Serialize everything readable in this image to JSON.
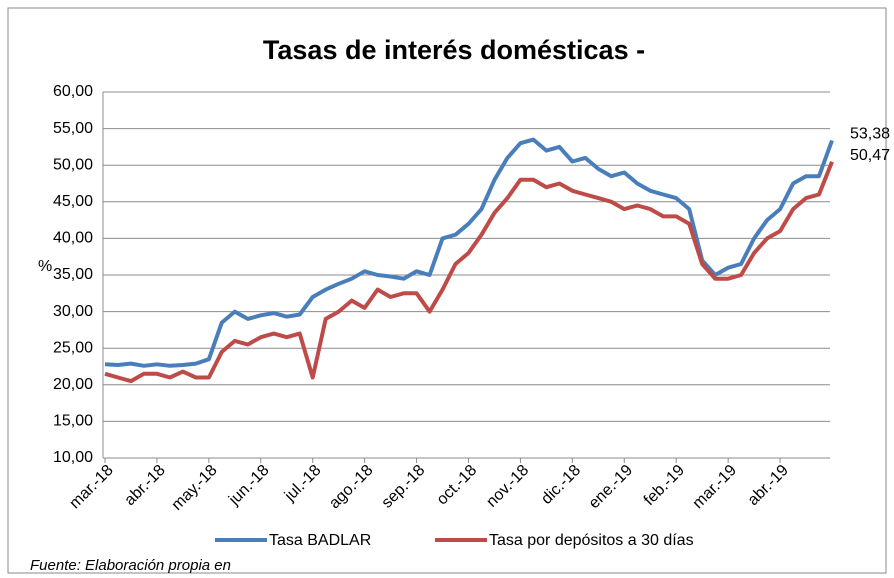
{
  "chart_data": {
    "type": "line",
    "title": "Tasas de interés domésticas -",
    "ylabel": "%",
    "source": "Fuente: Elaboración propia en",
    "categories": [
      "mar.-18",
      null,
      null,
      null,
      "abr.-18",
      null,
      null,
      null,
      "may.-18",
      null,
      null,
      null,
      "jun.-18",
      null,
      null,
      null,
      "jul.-18",
      null,
      null,
      null,
      "ago.-18",
      null,
      null,
      null,
      "sep.-18",
      null,
      null,
      null,
      "oct.-18",
      null,
      null,
      null,
      "nov.-18",
      null,
      null,
      null,
      "dic.-18",
      null,
      null,
      null,
      "ene.-19",
      null,
      null,
      null,
      "feb.-19",
      null,
      null,
      null,
      "mar.-19",
      null,
      null,
      null,
      "abr.-19",
      null,
      null,
      null,
      null
    ],
    "series": [
      {
        "name": "Tasa BADLAR",
        "color": "#4a7ebb",
        "values": [
          22.8,
          22.7,
          22.9,
          22.6,
          22.8,
          22.6,
          22.7,
          22.9,
          23.5,
          28.5,
          30,
          29,
          29.5,
          29.8,
          29.3,
          29.6,
          32,
          33,
          33.8,
          34.5,
          35.5,
          35,
          34.8,
          34.5,
          35.5,
          35,
          40,
          40.5,
          42,
          44,
          48,
          51,
          53,
          53.5,
          52,
          52.5,
          50.5,
          51,
          49.5,
          48.5,
          49,
          47.5,
          46.5,
          46,
          45.5,
          44,
          37,
          35,
          36,
          36.5,
          40,
          42.5,
          44,
          47.5,
          48.5,
          48.5,
          53.38
        ],
        "value_labels": [
          null,
          null,
          null,
          null,
          null,
          null,
          null,
          null,
          null,
          null,
          null,
          null,
          null,
          null,
          null,
          null,
          null,
          null,
          null,
          null,
          null,
          null,
          null,
          null,
          null,
          null,
          null,
          null,
          null,
          null,
          null,
          null,
          null,
          null,
          null,
          null,
          null,
          null,
          null,
          null,
          null,
          null,
          null,
          null,
          null,
          null,
          null,
          null,
          null,
          null,
          null,
          null,
          null,
          null,
          null,
          null,
          "53,38"
        ]
      },
      {
        "name": "Tasa por depósitos a 30 días",
        "color": "#be4b48",
        "values": [
          21.5,
          21,
          20.5,
          21.5,
          21.5,
          21,
          21.8,
          21,
          21,
          24.5,
          26,
          25.5,
          26.5,
          27,
          26.5,
          27,
          21,
          29,
          30,
          31.5,
          30.5,
          33,
          32,
          32.5,
          32.5,
          30,
          33,
          36.5,
          38,
          40.5,
          43.5,
          45.5,
          48,
          48,
          47,
          47.5,
          46.5,
          46,
          45.5,
          45,
          44,
          44.5,
          44,
          43,
          43,
          42,
          36.5,
          34.5,
          34.5,
          35,
          38,
          40,
          41,
          44,
          45.5,
          46,
          50.47
        ],
        "value_labels": [
          null,
          null,
          null,
          null,
          null,
          null,
          null,
          null,
          null,
          null,
          null,
          null,
          null,
          null,
          null,
          null,
          null,
          null,
          null,
          null,
          null,
          null,
          null,
          null,
          null,
          null,
          null,
          null,
          null,
          null,
          null,
          null,
          null,
          null,
          null,
          null,
          null,
          null,
          null,
          null,
          null,
          null,
          null,
          null,
          null,
          null,
          null,
          null,
          null,
          null,
          null,
          null,
          null,
          null,
          null,
          null,
          "50,47"
        ]
      }
    ],
    "ylim": [
      10,
      60
    ],
    "yticks": [
      {
        "value": 10,
        "label": "10,00"
      },
      {
        "value": 15,
        "label": "15,00"
      },
      {
        "value": 20,
        "label": "20,00"
      },
      {
        "value": 25,
        "label": "25,00"
      },
      {
        "value": 30,
        "label": "30,00"
      },
      {
        "value": 35,
        "label": "35,00"
      },
      {
        "value": 40,
        "label": "40,00"
      },
      {
        "value": 45,
        "label": "45,00"
      },
      {
        "value": 50,
        "label": "50,00"
      },
      {
        "value": 55,
        "label": "55,00"
      },
      {
        "value": 60,
        "label": "60,00"
      }
    ],
    "grid": true,
    "legend": "bottom"
  }
}
